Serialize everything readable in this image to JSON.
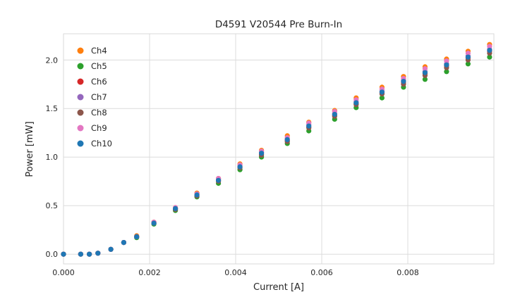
{
  "figure": {
    "background": "#ffffff"
  },
  "chart_data": {
    "type": "scatter",
    "title": "D4591 V20544 Pre Burn-In",
    "xlabel": "Current [A]",
    "ylabel": "Power [mW]",
    "xlim": [
      0.0,
      0.01
    ],
    "ylim": [
      -0.1,
      2.27
    ],
    "xticks": [
      0.0,
      0.002,
      0.004,
      0.006,
      0.008
    ],
    "xtick_labels": [
      "0.000",
      "0.002",
      "0.004",
      "0.006",
      "0.008"
    ],
    "yticks": [
      0.0,
      0.5,
      1.0,
      1.5,
      2.0
    ],
    "ytick_labels": [
      "0.0",
      "0.5",
      "1.0",
      "1.5",
      "2.0"
    ],
    "grid": true,
    "grid_color": "#dcdcdc",
    "plot_border_color": "#d9d9d9",
    "legend_position": "upper left",
    "marker_radius": 3.6,
    "x": [
      0.0,
      0.0004,
      0.0006,
      0.0008,
      0.0011,
      0.0014,
      0.0017,
      0.0021,
      0.0026,
      0.0031,
      0.0036,
      0.0041,
      0.0046,
      0.0052,
      0.0057,
      0.0063,
      0.0068,
      0.0074,
      0.0079,
      0.0084,
      0.0089,
      0.0094,
      0.0099
    ],
    "series": [
      {
        "name": "Ch4",
        "color": "#ff7f0e",
        "y": [
          0.0,
          0.0,
          0.0,
          0.01,
          0.05,
          0.12,
          0.19,
          0.33,
          0.48,
          0.63,
          0.78,
          0.93,
          1.07,
          1.22,
          1.36,
          1.48,
          1.61,
          1.72,
          1.83,
          1.93,
          2.01,
          2.09,
          2.16
        ]
      },
      {
        "name": "Ch5",
        "color": "#2ca02c",
        "y": [
          0.0,
          0.0,
          0.0,
          0.01,
          0.05,
          0.12,
          0.17,
          0.31,
          0.45,
          0.59,
          0.73,
          0.87,
          1.0,
          1.14,
          1.27,
          1.39,
          1.51,
          1.61,
          1.72,
          1.8,
          1.88,
          1.96,
          2.03
        ]
      },
      {
        "name": "Ch6",
        "color": "#d62728",
        "y": [
          0.0,
          0.0,
          0.0,
          0.01,
          0.05,
          0.12,
          0.18,
          0.32,
          0.47,
          0.61,
          0.76,
          0.9,
          1.03,
          1.17,
          1.31,
          1.43,
          1.55,
          1.66,
          1.77,
          1.86,
          1.94,
          2.02,
          2.09
        ]
      },
      {
        "name": "Ch7",
        "color": "#9467bd",
        "y": [
          0.0,
          0.0,
          0.0,
          0.01,
          0.05,
          0.12,
          0.18,
          0.32,
          0.47,
          0.62,
          0.77,
          0.91,
          1.05,
          1.19,
          1.33,
          1.45,
          1.57,
          1.68,
          1.79,
          1.88,
          1.96,
          2.04,
          2.11
        ]
      },
      {
        "name": "Ch8",
        "color": "#8c564b",
        "y": [
          0.0,
          0.0,
          0.0,
          0.01,
          0.05,
          0.12,
          0.18,
          0.32,
          0.46,
          0.6,
          0.75,
          0.89,
          1.02,
          1.16,
          1.3,
          1.42,
          1.54,
          1.65,
          1.75,
          1.84,
          1.92,
          2.0,
          2.07
        ]
      },
      {
        "name": "Ch9",
        "color": "#e377c2",
        "y": [
          0.0,
          0.0,
          0.0,
          0.01,
          0.05,
          0.12,
          0.18,
          0.33,
          0.48,
          0.62,
          0.78,
          0.92,
          1.06,
          1.2,
          1.35,
          1.47,
          1.59,
          1.7,
          1.81,
          1.91,
          1.99,
          2.07,
          2.14
        ]
      },
      {
        "name": "Ch10",
        "color": "#1f77b4",
        "y": [
          0.0,
          0.0,
          0.0,
          0.01,
          0.05,
          0.12,
          0.18,
          0.32,
          0.47,
          0.61,
          0.76,
          0.9,
          1.04,
          1.18,
          1.32,
          1.44,
          1.56,
          1.67,
          1.78,
          1.87,
          1.95,
          2.03,
          2.1
        ]
      }
    ]
  }
}
